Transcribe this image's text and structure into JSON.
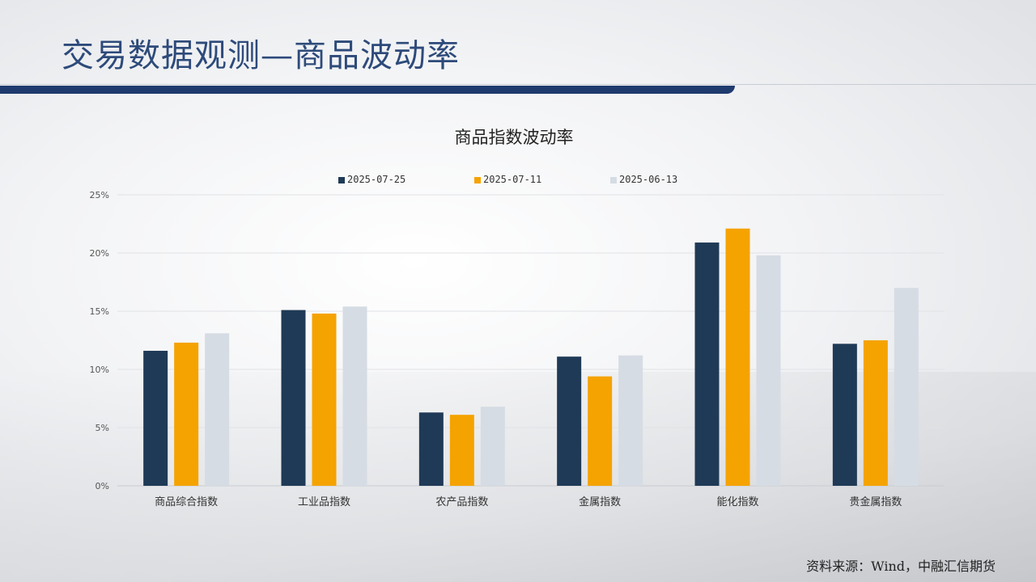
{
  "page": {
    "title": "交易数据观测—商品波动率",
    "source": "资料来源：Wind，中融汇信期货"
  },
  "colors": {
    "title": "#2d4a7a",
    "title_bar": "#1f3b6e",
    "series": [
      "#1f3a56",
      "#f5a300",
      "#d6dce4"
    ]
  },
  "chart_data": {
    "type": "bar",
    "title": "商品指数波动率",
    "categories": [
      "商品综合指数",
      "工业品指数",
      "农产品指数",
      "金属指数",
      "能化指数",
      "贵金属指数"
    ],
    "series": [
      {
        "name": "2025-07-25",
        "values": [
          11.6,
          15.1,
          6.3,
          11.1,
          20.9,
          12.2
        ]
      },
      {
        "name": "2025-07-11",
        "values": [
          12.3,
          14.8,
          6.1,
          9.4,
          22.1,
          12.5
        ]
      },
      {
        "name": "2025-06-13",
        "values": [
          13.1,
          15.4,
          6.8,
          11.2,
          19.8,
          17.0
        ]
      }
    ],
    "ylim": [
      0,
      25
    ],
    "yticks": [
      "0%",
      "5%",
      "10%",
      "15%",
      "20%",
      "25%"
    ],
    "ytick_values": [
      0,
      5,
      10,
      15,
      20,
      25
    ],
    "grid": true,
    "legend": "top-center"
  }
}
